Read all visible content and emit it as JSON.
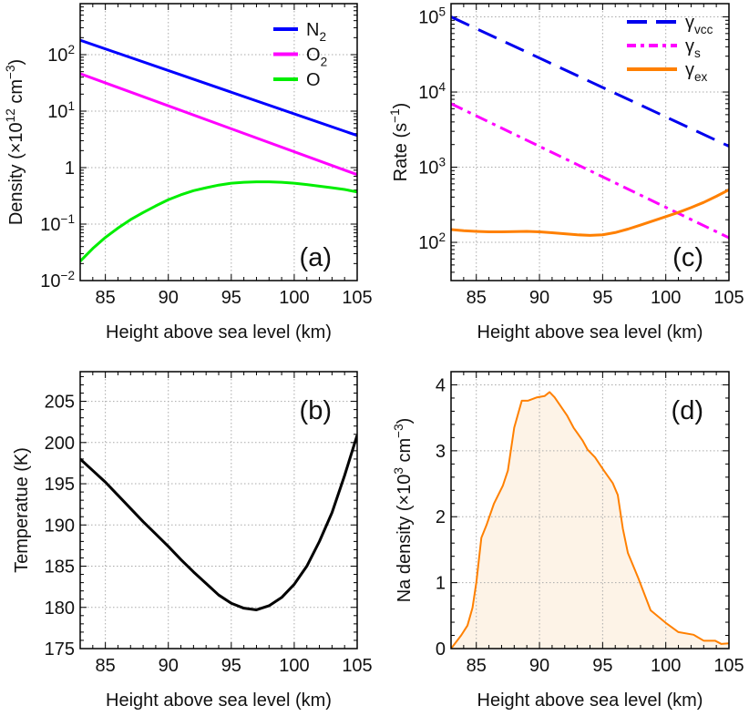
{
  "chart_data": [
    {
      "panel": "(a)",
      "type": "line",
      "xlabel": "Height above sea level (km)",
      "ylabel": "Density  (×10^{12} cm^{−3})",
      "xlim": [
        83,
        105
      ],
      "ylim": [
        0.01,
        800
      ],
      "yscale": "log",
      "xticks": [
        85,
        90,
        95,
        100,
        105
      ],
      "yticks": [
        {
          "v": 0.01,
          "label": "10^{−2}"
        },
        {
          "v": 0.1,
          "label": "10^{−1}"
        },
        {
          "v": 1,
          "label": "1"
        },
        {
          "v": 10,
          "label": "10^{1}"
        },
        {
          "v": 100,
          "label": "10^{2}"
        }
      ],
      "grid": true,
      "legend": "top-right",
      "series": [
        {
          "name": "N_{2}",
          "color": "#0000ff",
          "style": "solid",
          "x": [
            83,
            105
          ],
          "y": [
            180,
            3.7
          ]
        },
        {
          "name": "O_{2}",
          "color": "#ff00ff",
          "style": "solid",
          "x": [
            83,
            105
          ],
          "y": [
            46,
            0.75
          ]
        },
        {
          "name": "O",
          "color": "#00ee00",
          "style": "solid",
          "x": [
            83,
            84,
            85,
            86,
            87,
            88,
            89,
            90,
            91,
            92,
            93,
            94,
            95,
            96,
            97,
            98,
            99,
            100,
            101,
            102,
            103,
            104,
            105
          ],
          "y": [
            0.022,
            0.037,
            0.058,
            0.085,
            0.12,
            0.16,
            0.21,
            0.27,
            0.33,
            0.39,
            0.44,
            0.49,
            0.53,
            0.55,
            0.56,
            0.56,
            0.55,
            0.53,
            0.5,
            0.47,
            0.44,
            0.41,
            0.37
          ]
        }
      ]
    },
    {
      "panel": "(c)",
      "type": "line",
      "xlabel": "Height above sea level (km)",
      "ylabel": "Rate (s^{−1})",
      "xlim": [
        83,
        105
      ],
      "ylim": [
        31,
        150000
      ],
      "yscale": "log",
      "xticks": [
        85,
        90,
        95,
        100,
        105
      ],
      "yticks": [
        {
          "v": 100,
          "label": "10^{2}"
        },
        {
          "v": 1000,
          "label": "10^{3}"
        },
        {
          "v": 10000,
          "label": "10^{4}"
        },
        {
          "v": 100000,
          "label": "10^{5}"
        }
      ],
      "grid": true,
      "legend": "top-right",
      "series": [
        {
          "name": "γ_{vcc}",
          "color": "#0000ee",
          "style": "dashed",
          "x": [
            83,
            105
          ],
          "y": [
            100000,
            1900
          ]
        },
        {
          "name": "γ_{s}",
          "color": "#ff00ff",
          "style": "dashdot",
          "x": [
            83,
            105
          ],
          "y": [
            7000,
            115
          ]
        },
        {
          "name": "γ_{ex}",
          "color": "#ff8000",
          "style": "solid",
          "x": [
            83,
            84,
            85,
            86,
            87,
            88,
            89,
            90,
            91,
            92,
            93,
            94,
            95,
            96,
            97,
            98,
            99,
            100,
            101,
            102,
            103,
            104,
            105
          ],
          "y": [
            148,
            143,
            140,
            138,
            138,
            139,
            140,
            138,
            134,
            130,
            126,
            124,
            126,
            135,
            150,
            170,
            193,
            220,
            250,
            290,
            340,
            410,
            500
          ]
        }
      ]
    },
    {
      "panel": "(b)",
      "type": "line",
      "xlabel": "Height above sea level (km)",
      "ylabel": "Temperatue (K)",
      "xlim": [
        83,
        105
      ],
      "ylim": [
        175,
        208.6
      ],
      "yscale": "linear",
      "xticks": [
        85,
        90,
        95,
        100,
        105
      ],
      "yticks": [
        {
          "v": 175,
          "label": "175"
        },
        {
          "v": 180,
          "label": "180"
        },
        {
          "v": 185,
          "label": "185"
        },
        {
          "v": 190,
          "label": "190"
        },
        {
          "v": 195,
          "label": "195"
        },
        {
          "v": 200,
          "label": "200"
        },
        {
          "v": 205,
          "label": "205"
        }
      ],
      "grid": true,
      "series": [
        {
          "color": "#000000",
          "style": "solid",
          "x": [
            83,
            84,
            85,
            86,
            87,
            88,
            89,
            90,
            91,
            92,
            93,
            94,
            95,
            96,
            97,
            98,
            99,
            100,
            101,
            102,
            103,
            104,
            105
          ],
          "y": [
            198,
            196.6,
            195.2,
            193.6,
            192,
            190.4,
            188.9,
            187.4,
            185.8,
            184.3,
            182.9,
            181.5,
            180.5,
            179.9,
            179.7,
            180.2,
            181.2,
            182.8,
            185,
            188,
            191.5,
            196,
            200.9
          ]
        }
      ]
    },
    {
      "panel": "(d)",
      "type": "area",
      "xlabel": "Height above sea level (km)",
      "ylabel": "Na density (×10^{3} cm^{−3})",
      "xlim": [
        83,
        105
      ],
      "ylim": [
        0,
        4.2
      ],
      "yscale": "linear",
      "xticks": [
        85,
        90,
        95,
        100,
        105
      ],
      "yticks": [
        {
          "v": 0,
          "label": "0"
        },
        {
          "v": 1,
          "label": "1"
        },
        {
          "v": 2,
          "label": "2"
        },
        {
          "v": 3,
          "label": "3"
        },
        {
          "v": 4,
          "label": "4"
        }
      ],
      "grid": true,
      "fill": "#fdf3e7",
      "series": [
        {
          "color": "#ff8000",
          "style": "solid",
          "x": [
            83,
            83.8,
            84.3,
            84.7,
            85,
            85.4,
            85.8,
            86.4,
            87.1,
            87.5,
            88,
            88.6,
            89.1,
            89.8,
            90.4,
            90.8,
            91.2,
            92.2,
            92.7,
            93.4,
            93.8,
            94.4,
            95.1,
            95.8,
            96.2,
            96.6,
            97,
            97.8,
            98.8,
            100,
            101,
            102.2,
            103,
            103.9,
            104.4,
            105
          ],
          "y": [
            0,
            0.2,
            0.35,
            0.62,
            1.0,
            1.68,
            1.87,
            2.2,
            2.47,
            2.7,
            3.35,
            3.76,
            3.76,
            3.81,
            3.83,
            3.89,
            3.81,
            3.53,
            3.35,
            3.16,
            3.02,
            2.9,
            2.7,
            2.51,
            2.33,
            1.82,
            1.45,
            1.08,
            0.58,
            0.39,
            0.25,
            0.21,
            0.12,
            0.12,
            0.07,
            0.08
          ]
        }
      ]
    }
  ]
}
